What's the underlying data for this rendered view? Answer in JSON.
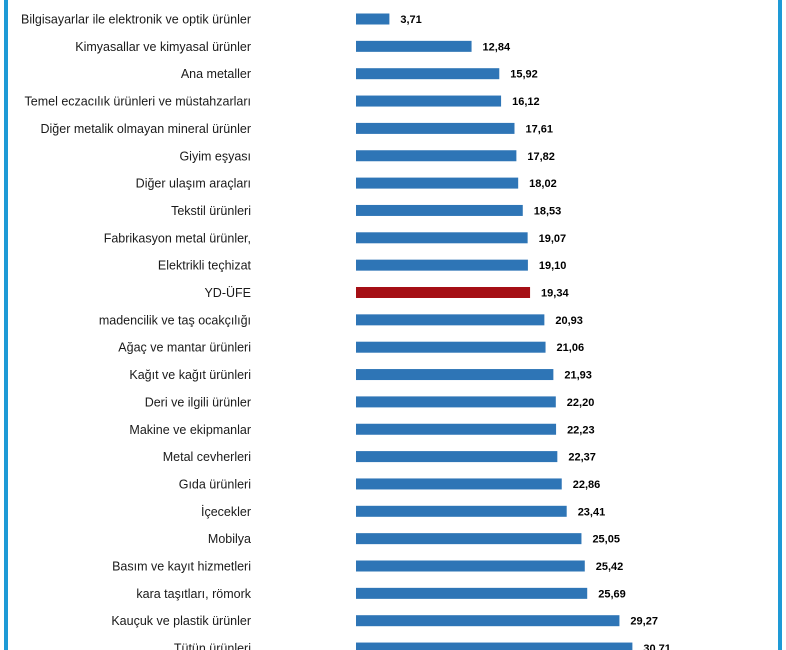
{
  "chart_data": {
    "type": "bar",
    "orientation": "horizontal",
    "title": "",
    "xlabel": "",
    "ylabel": "",
    "xlim": [
      0,
      30.71
    ],
    "categories": [
      "Bilgisayarlar ile elektronik ve optik ürünler",
      "Kimyasallar ve kimyasal ürünler",
      "Ana metaller",
      "Temel eczacılık ürünleri ve müstahzarları",
      "Diğer metalik olmayan mineral ürünler",
      "Giyim eşyası",
      "Diğer ulaşım araçları",
      "Tekstil ürünleri",
      "Fabrikasyon metal ürünler,",
      "Elektrikli teçhizat",
      "YD-ÜFE",
      "madencilik ve taş ocakçılığı",
      "Ağaç ve mantar ürünleri",
      "Kağıt ve kağıt ürünleri",
      "Deri ve ilgili ürünler",
      "Makine ve ekipmanlar",
      "Metal cevherleri",
      "Gıda ürünleri",
      "İçecekler",
      "Mobilya",
      "Basım ve kayıt hizmetleri",
      "kara taşıtları, römork",
      "Kauçuk ve plastik ürünler",
      "Tütün ürünleri"
    ],
    "values": [
      3.71,
      12.84,
      15.92,
      16.12,
      17.61,
      17.82,
      18.02,
      18.53,
      19.07,
      19.1,
      19.34,
      20.93,
      21.06,
      21.93,
      22.2,
      22.23,
      22.37,
      22.86,
      23.41,
      25.05,
      25.42,
      25.69,
      29.27,
      30.71
    ],
    "value_labels": [
      "3,71",
      "12,84",
      "15,92",
      "16,12",
      "17,61",
      "17,82",
      "18,02",
      "18,53",
      "19,07",
      "19,10",
      "19,34",
      "20,93",
      "21,06",
      "21,93",
      "22,20",
      "22,23",
      "22,37",
      "22,86",
      "23,41",
      "25,05",
      "25,42",
      "25,69",
      "29,27",
      "30,71"
    ],
    "highlight_category": "YD-ÜFE",
    "colors": {
      "bar": "#2e75b6",
      "highlight": "#a50f15",
      "frame": "#1e9ad6"
    }
  }
}
